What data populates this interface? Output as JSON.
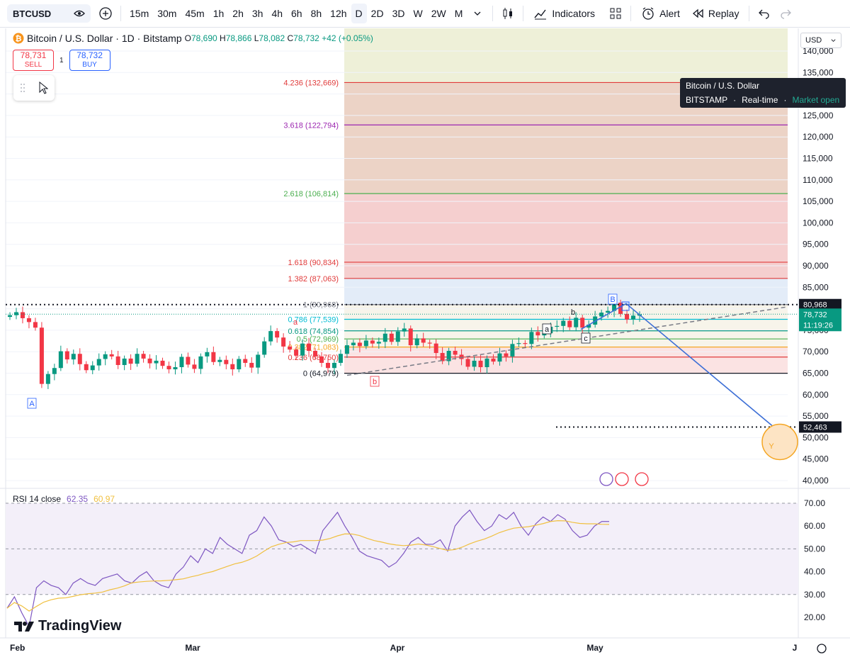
{
  "toolbar": {
    "symbol": "BTCUSD",
    "intervals": [
      "15m",
      "30m",
      "45m",
      "1h",
      "2h",
      "3h",
      "4h",
      "6h",
      "8h",
      "12h",
      "D",
      "2D",
      "3D",
      "W",
      "2W",
      "M"
    ],
    "active_interval": "D",
    "indicators_label": "Indicators",
    "alert_label": "Alert",
    "replay_label": "Replay"
  },
  "legend": {
    "title": "Bitcoin / U.S. Dollar · 1D · Bitstamp",
    "o_label": "O",
    "o": "78,690",
    "h_label": "H",
    "h": "78,866",
    "l_label": "L",
    "l": "78,082",
    "c_label": "C",
    "c": "78,732",
    "change": "+42 (+0.05%)"
  },
  "trade": {
    "sell_price": "78,731",
    "sell_label": "SELL",
    "quantity": "1",
    "buy_price": "78,732",
    "buy_label": "BUY"
  },
  "tooltip": {
    "title": "Bitcoin / U.S. Dollar",
    "exchange": "BITSTAMP",
    "realtime": "Real-time",
    "status": "Market open"
  },
  "currency": "USD",
  "price_axis": [
    "140,000",
    "135,000",
    "130,000",
    "125,000",
    "120,000",
    "115,000",
    "110,000",
    "105,000",
    "100,000",
    "95,000",
    "90,000",
    "85,000",
    "80,000",
    "75,000",
    "70,000",
    "65,000",
    "60,000",
    "55,000",
    "50,000",
    "45,000",
    "40,000"
  ],
  "price_tags": {
    "dotted_top": "80,968",
    "last_price": "78,732",
    "countdown": "11:19:26",
    "dotted_bottom": "52,463"
  },
  "fib_levels": [
    {
      "label": "4.236 (132,669)",
      "price": 132669,
      "color": "#e03a3a"
    },
    {
      "label": "3.618 (122,794)",
      "price": 122794,
      "color": "#9c27b0"
    },
    {
      "label": "2.618 (106,814)",
      "price": 106814,
      "color": "#4caf50"
    },
    {
      "label": "1.618 (90,834)",
      "price": 90834,
      "color": "#e03a3a"
    },
    {
      "label": "1.382 (87,063)",
      "price": 87063,
      "color": "#e03a3a"
    },
    {
      "label": "1 (80,968)",
      "price": 80968,
      "color": "#787b86"
    },
    {
      "label": "0.786 (77,539)",
      "price": 77539,
      "color": "#00bcd4"
    },
    {
      "label": "0.618 (74,854)",
      "price": 74854,
      "color": "#089981"
    },
    {
      "label": "0.5 (72,969)",
      "price": 72969,
      "color": "#4caf50"
    },
    {
      "label": "0.382 (71,083)",
      "price": 71083,
      "color": "#f5a623"
    },
    {
      "label": "0.236 (68,750)",
      "price": 68750,
      "color": "#e03a3a"
    },
    {
      "label": "0 (64,979)",
      "price": 64979,
      "color": "#131722"
    }
  ],
  "wave_labels": [
    "A",
    "a",
    "b",
    "a",
    "b",
    "c",
    "B",
    "Y"
  ],
  "rsi": {
    "label": "RSI 14 close",
    "value": "62.35",
    "ma_value": "60.97",
    "axis": [
      "70.00",
      "60.00",
      "50.00",
      "40.00",
      "30.00",
      "20.00"
    ]
  },
  "time_axis": [
    "Feb",
    "Mar",
    "Apr",
    "May",
    "J"
  ],
  "brand": "TradingView",
  "colors": {
    "up": "#089981",
    "down": "#f23645",
    "accent": "#2962ff"
  }
}
